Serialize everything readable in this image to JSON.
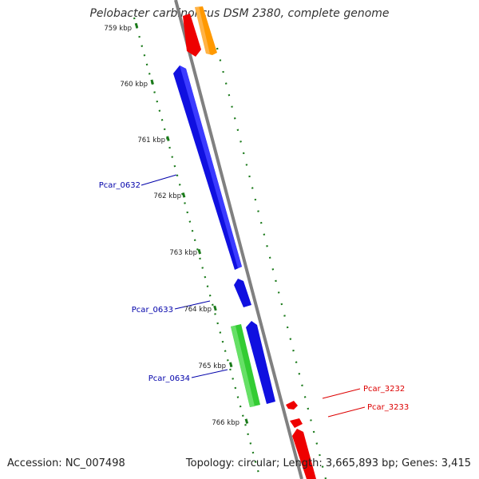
{
  "title": "Pelobacter carbinolicus DSM 2380, complete genome",
  "footer": {
    "accession": "Accession: NC_007498",
    "stats": "Topology: circular; Length: 3,665,893 bp; Genes: 3,415"
  },
  "ticks": [
    {
      "label": "759 kbp",
      "value_kbp": 759
    },
    {
      "label": "760 kbp",
      "value_kbp": 760
    },
    {
      "label": "761 kbp",
      "value_kbp": 761
    },
    {
      "label": "762 kbp",
      "value_kbp": 762
    },
    {
      "label": "763 kbp",
      "value_kbp": 763
    },
    {
      "label": "764 kbp",
      "value_kbp": 764
    },
    {
      "label": "765 kbp",
      "value_kbp": 765
    },
    {
      "label": "766 kbp",
      "value_kbp": 766
    }
  ],
  "gene_labels": [
    {
      "text": "Pcar_0632",
      "color": "#0000aa"
    },
    {
      "text": "Pcar_0633",
      "color": "#0000aa"
    },
    {
      "text": "Pcar_0634",
      "color": "#0000aa"
    },
    {
      "text": "Pcar_3232",
      "color": "#dd0000"
    },
    {
      "text": "Pcar_3233",
      "color": "#dd0000"
    }
  ],
  "colors": {
    "backbone": "#808080",
    "tick_dots": "#1a7a1a",
    "blue_feature": "#1010e0",
    "green_feature": "#33cc33",
    "red_feature": "#ee0000",
    "orange_feature": "#ff9900",
    "tick_label": "#222222"
  }
}
